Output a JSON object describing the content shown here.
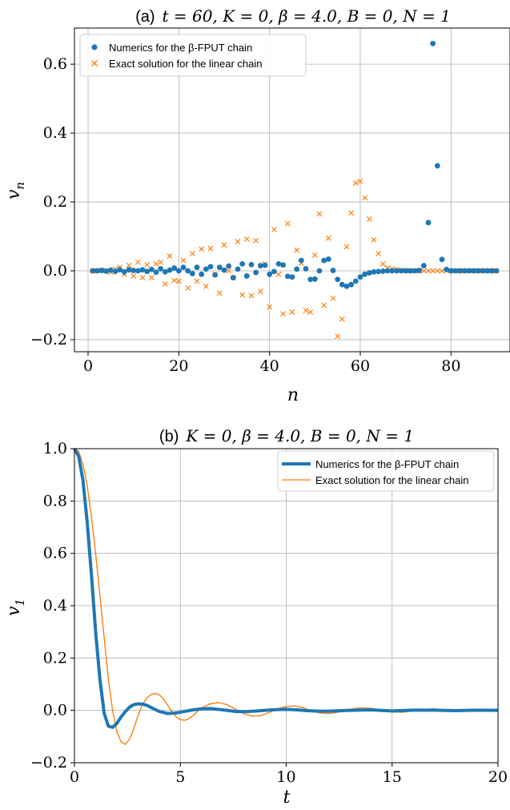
{
  "colors": {
    "numerics": "#1f77b4",
    "exact": "#ff7f0e"
  },
  "chart_data": [
    {
      "type": "scatter",
      "title_prefix": "(a)",
      "title": "t = 60,  K = 0,  β = 4.0,  B = 0,  N = 1",
      "xlabel": "n",
      "ylabel": "v",
      "ylabel_sub": "n",
      "xlim": [
        -3,
        93
      ],
      "ylim": [
        -0.235,
        0.705
      ],
      "xticks": [
        0,
        20,
        40,
        60,
        80
      ],
      "xtick_labels": [
        "0",
        "20",
        "40",
        "60",
        "80"
      ],
      "yticks": [
        -0.2,
        0.0,
        0.2,
        0.4,
        0.6
      ],
      "ytick_labels": [
        "−0.2",
        "0.0",
        "0.2",
        "0.4",
        "0.6"
      ],
      "grid": true,
      "legend_position": "top-left",
      "legend": [
        "Numerics for the β-FPUT chain",
        "Exact solution for the linear chain"
      ],
      "series": [
        {
          "name": "Numerics for the β-FPUT chain",
          "marker": "circle",
          "x": [
            1,
            2,
            3,
            4,
            5,
            6,
            7,
            8,
            9,
            10,
            11,
            12,
            13,
            14,
            15,
            16,
            17,
            18,
            19,
            20,
            21,
            22,
            23,
            24,
            25,
            26,
            27,
            28,
            29,
            30,
            31,
            32,
            33,
            34,
            35,
            36,
            37,
            38,
            39,
            40,
            41,
            42,
            43,
            44,
            45,
            46,
            47,
            48,
            49,
            50,
            51,
            52,
            53,
            54,
            55,
            56,
            57,
            58,
            59,
            60,
            61,
            62,
            63,
            64,
            65,
            66,
            67,
            68,
            69,
            70,
            71,
            72,
            73,
            74,
            75,
            76,
            77,
            78,
            79,
            80,
            81,
            82,
            83,
            84,
            85,
            86,
            87,
            88,
            89,
            90
          ],
          "y": [
            0.0,
            0.0,
            0.001,
            -0.001,
            0.002,
            -0.002,
            0.003,
            -0.003,
            0.003,
            0.001,
            0.0,
            0.003,
            -0.002,
            0.004,
            -0.004,
            0.006,
            -0.003,
            0.002,
            0.008,
            0.0,
            0.01,
            0.0,
            -0.008,
            0.01,
            -0.01,
            0.005,
            0.012,
            -0.012,
            0.01,
            0.002,
            0.014,
            -0.02,
            0.005,
            0.02,
            -0.015,
            0.018,
            -0.005,
            0.015,
            0.016,
            -0.01,
            -0.002,
            0.02,
            0.017,
            -0.016,
            -0.018,
            0.005,
            0.03,
            0.006,
            -0.025,
            -0.024,
            0.0,
            0.03,
            0.034,
            0.001,
            -0.025,
            -0.04,
            -0.045,
            -0.04,
            -0.03,
            -0.018,
            -0.01,
            -0.006,
            -0.003,
            -0.002,
            -0.001,
            0.0,
            0.0,
            0.0,
            0.0,
            0.0,
            0.0,
            0.0,
            0.001,
            0.015,
            0.14,
            0.66,
            0.305,
            0.033,
            0.004,
            0.0,
            0.0,
            0.0,
            0.0,
            0.0,
            0.0,
            0.0,
            0.0,
            0.0,
            0.0,
            0.0
          ]
        },
        {
          "name": "Exact solution for the linear chain",
          "marker": "x",
          "x": [
            1,
            2,
            3,
            4,
            5,
            6,
            7,
            8,
            9,
            10,
            11,
            12,
            13,
            14,
            15,
            16,
            17,
            18,
            19,
            20,
            21,
            22,
            23,
            24,
            25,
            26,
            27,
            28,
            29,
            30,
            31,
            32,
            33,
            34,
            35,
            36,
            37,
            38,
            39,
            40,
            41,
            42,
            43,
            44,
            45,
            46,
            47,
            48,
            49,
            50,
            51,
            52,
            53,
            54,
            55,
            56,
            57,
            58,
            59,
            60,
            61,
            62,
            63,
            64,
            65,
            66,
            67,
            68,
            69,
            70,
            71,
            72,
            73,
            74,
            75,
            76,
            77,
            78,
            79,
            80,
            81,
            82,
            83,
            84,
            85,
            86,
            87,
            88,
            89,
            90
          ],
          "y": [
            0.0,
            0.0,
            0.002,
            0.0,
            -0.004,
            0.005,
            0.01,
            -0.01,
            0.016,
            -0.015,
            0.025,
            -0.02,
            0.018,
            -0.02,
            0.02,
            0.025,
            -0.038,
            0.043,
            -0.028,
            -0.03,
            0.03,
            -0.05,
            0.05,
            -0.03,
            0.063,
            -0.045,
            0.065,
            -0.01,
            -0.065,
            0.075,
            0.0,
            -0.02,
            0.085,
            -0.07,
            0.092,
            -0.072,
            0.088,
            -0.06,
            0.02,
            -0.105,
            0.12,
            -0.01,
            -0.125,
            0.137,
            -0.12,
            0.06,
            0.022,
            -0.115,
            -0.12,
            0.045,
            0.165,
            -0.1,
            0.095,
            -0.08,
            -0.19,
            -0.14,
            0.07,
            0.168,
            0.255,
            0.26,
            0.212,
            0.15,
            0.09,
            0.05,
            0.02,
            0.008,
            0.005,
            0.003,
            0.002,
            0.001,
            0.0,
            0.0,
            0.0,
            0.0,
            0.0,
            0.0,
            0.0,
            0.0,
            0.0,
            0.0,
            0.0,
            0.0,
            0.0,
            0.0,
            0.0,
            0.0,
            0.0,
            0.0,
            0.0,
            0.0
          ]
        }
      ]
    },
    {
      "type": "line",
      "title_prefix": "(b)",
      "title": "K = 0,  β = 4.0,  B = 0,  N = 1",
      "xlabel": "t",
      "ylabel": "v",
      "ylabel_sub": "1",
      "xlim": [
        0,
        20
      ],
      "ylim": [
        -0.2,
        1.0
      ],
      "xticks": [
        0,
        5,
        10,
        15,
        20
      ],
      "xtick_labels": [
        "0",
        "5",
        "10",
        "15",
        "20"
      ],
      "yticks": [
        -0.2,
        0.0,
        0.2,
        0.4,
        0.6,
        0.8,
        1.0
      ],
      "ytick_labels": [
        "−0.2",
        "0.0",
        "0.2",
        "0.4",
        "0.6",
        "0.8",
        "1.0"
      ],
      "grid": true,
      "legend_position": "top-right",
      "legend": [
        "Numerics for the β-FPUT chain",
        "Exact solution for the linear chain"
      ],
      "series": [
        {
          "name": "Numerics for the β-FPUT chain",
          "linewidth": "thick",
          "x": [
            0,
            0.2,
            0.4,
            0.6,
            0.8,
            1.0,
            1.2,
            1.4,
            1.6,
            1.8,
            2.0,
            2.2,
            2.4,
            2.6,
            2.8,
            3.0,
            3.2,
            3.4,
            3.6,
            3.8,
            4.0,
            4.4,
            4.8,
            5.2,
            5.6,
            6.0,
            6.4,
            6.8,
            7.2,
            7.6,
            8.0,
            8.5,
            9.0,
            9.5,
            10.0,
            10.5,
            11.0,
            11.5,
            12.0,
            13.0,
            14.0,
            15.0,
            16.0,
            17.0,
            18.0,
            19.0,
            20.0
          ],
          "y": [
            1.0,
            0.97,
            0.88,
            0.72,
            0.52,
            0.3,
            0.12,
            -0.01,
            -0.06,
            -0.065,
            -0.05,
            -0.025,
            -0.005,
            0.012,
            0.022,
            0.025,
            0.024,
            0.02,
            0.012,
            0.004,
            -0.004,
            -0.012,
            -0.01,
            -0.004,
            0.002,
            0.006,
            0.007,
            0.004,
            0.0,
            -0.004,
            -0.005,
            -0.003,
            0.0,
            0.003,
            0.004,
            0.002,
            -0.001,
            -0.003,
            -0.003,
            0.0,
            0.002,
            -0.002,
            0.001,
            0.001,
            -0.001,
            0.001,
            0.0
          ]
        },
        {
          "name": "Exact solution for the linear chain",
          "linewidth": "thin",
          "x": [
            0,
            0.2,
            0.4,
            0.6,
            0.8,
            1.0,
            1.2,
            1.4,
            1.6,
            1.8,
            2.0,
            2.2,
            2.4,
            2.6,
            2.8,
            3.0,
            3.2,
            3.4,
            3.6,
            3.8,
            4.0,
            4.2,
            4.4,
            4.6,
            4.8,
            5.0,
            5.2,
            5.4,
            5.6,
            5.8,
            6.0,
            6.4,
            6.8,
            7.2,
            7.6,
            8.0,
            8.4,
            8.8,
            9.2,
            9.6,
            10.0,
            10.4,
            10.8,
            11.2,
            11.6,
            12.0,
            12.5,
            13.0,
            13.5,
            14.0,
            14.5,
            15.0,
            15.5,
            16.0,
            16.5,
            17.0,
            17.5,
            18.0,
            18.5,
            19.0,
            19.5,
            20.0
          ],
          "y": [
            1.0,
            0.99,
            0.94,
            0.86,
            0.74,
            0.6,
            0.44,
            0.28,
            0.12,
            0.0,
            -0.08,
            -0.12,
            -0.13,
            -0.11,
            -0.07,
            -0.02,
            0.02,
            0.045,
            0.06,
            0.065,
            0.06,
            0.045,
            0.02,
            -0.005,
            -0.025,
            -0.035,
            -0.038,
            -0.032,
            -0.02,
            -0.005,
            0.01,
            0.025,
            0.03,
            0.022,
            0.005,
            -0.012,
            -0.022,
            -0.02,
            -0.008,
            0.006,
            0.015,
            0.017,
            0.01,
            -0.002,
            -0.01,
            -0.012,
            -0.006,
            0.004,
            0.01,
            0.008,
            0.0,
            -0.006,
            -0.007,
            -0.002,
            0.004,
            0.006,
            0.002,
            -0.003,
            -0.004,
            0.0,
            0.003,
            0.0
          ]
        }
      ]
    }
  ]
}
